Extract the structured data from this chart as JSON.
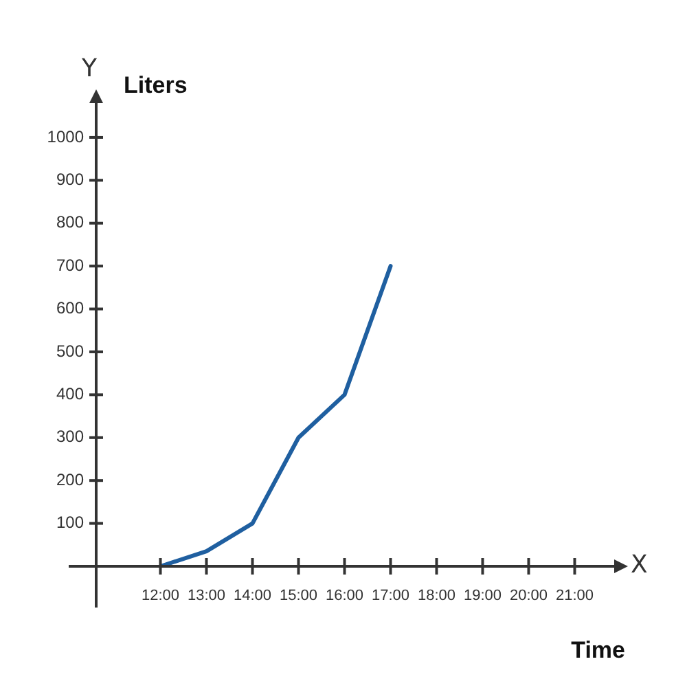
{
  "chart_data": {
    "type": "line",
    "xlabel": "Time",
    "ylabel": "Liters",
    "annotations": [
      "Y",
      "X"
    ],
    "categories": [
      "12:00",
      "13:00",
      "14:00",
      "15:00",
      "16:00",
      "17:00",
      "18:00",
      "19:00",
      "20:00",
      "21:00"
    ],
    "series": [
      {
        "color": "#1f5fa0",
        "values": [
          0,
          35,
          100,
          300,
          400,
          700,
          null,
          null,
          null,
          null
        ]
      }
    ],
    "ylim": [
      0,
      1080
    ],
    "yticks": [
      {
        "value": 0,
        "label": null
      },
      100,
      200,
      300,
      400,
      500,
      600,
      700,
      800,
      900,
      1000
    ],
    "grid": false,
    "legend": false,
    "marker": "none",
    "line_style": "solid"
  }
}
